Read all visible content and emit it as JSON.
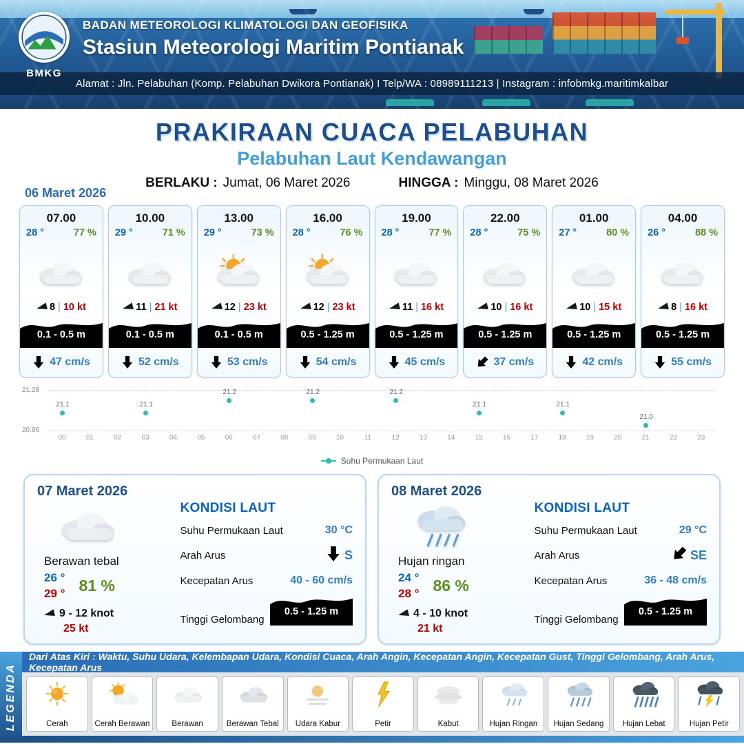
{
  "colors": {
    "header_blue": "#1d4e86",
    "title_blue": "#1b4f8f",
    "subtitle_blue": "#41a0dc",
    "temp_blue": "#0b62c4",
    "humidity_green": "#5d8f1f",
    "gust_red": "#c00000",
    "wave_band_blue": "#29abe2",
    "wave_band_green": "#00a651",
    "current_blue": "#2f7fc1",
    "sst_teal": "#2bbfae"
  },
  "header": {
    "logo": "BMKG",
    "agency": "BADAN METEOROLOGI KLIMATOLOGI DAN GEOFISIKA",
    "station": "Stasiun Meteorologi Maritim Pontianak",
    "address": "Alamat : Jln. Pelabuhan (Komp. Pelabuhan Dwikora Pontianak) I Telp/WA : 08989111213 | Instagram : infobmkg.maritimkalbar"
  },
  "title": {
    "main": "PRAKIRAAN CUACA PELABUHAN",
    "subtitle": "Pelabuhan Laut Kendawangan",
    "valid_label": "BERLAKU :",
    "valid_value": "Jumat, 06 Maret 2026",
    "until_label": "HINGGA :",
    "until_value": "Minggu, 08 Maret 2026"
  },
  "forecast_date": "06 Maret 2026",
  "forecast_cards": [
    {
      "time": "07.00",
      "temp": "28 °",
      "humidity": "77 %",
      "weather": "berawan",
      "wind": "8",
      "separator": "|",
      "gust": "10 kt",
      "wave": "0.1 - 0.5 m",
      "wave_level": "blue",
      "current": "47 cm/s"
    },
    {
      "time": "10.00",
      "temp": "29 °",
      "humidity": "71 %",
      "weather": "berawan",
      "wind": "11",
      "separator": "|",
      "gust": "21 kt",
      "wave": "0.1 - 0.5 m",
      "wave_level": "blue",
      "current": "52 cm/s"
    },
    {
      "time": "13.00",
      "temp": "29 °",
      "humidity": "73 %",
      "weather": "cerah berawan",
      "wind": "12",
      "separator": "|",
      "gust": "23 kt",
      "wave": "0.1 - 0.5 m",
      "wave_level": "blue",
      "current": "53 cm/s"
    },
    {
      "time": "16.00",
      "temp": "28 °",
      "humidity": "76 %",
      "weather": "cerah berawan",
      "wind": "12",
      "separator": "|",
      "gust": "23 kt",
      "wave": "0.5 - 1.25 m",
      "wave_level": "green",
      "current": "54 cm/s"
    },
    {
      "time": "19.00",
      "temp": "28 °",
      "humidity": "77 %",
      "weather": "berawan",
      "wind": "11",
      "separator": "|",
      "gust": "16 kt",
      "wave": "0.5 - 1.25 m",
      "wave_level": "green",
      "current": "45 cm/s"
    },
    {
      "time": "22.00",
      "temp": "28 °",
      "humidity": "75 %",
      "weather": "berawan",
      "wind": "10",
      "separator": "|",
      "gust": "16 kt",
      "wave": "0.5 - 1.25 m",
      "wave_level": "green",
      "current": "37 cm/s"
    },
    {
      "time": "01.00",
      "temp": "27 °",
      "humidity": "80 %",
      "weather": "berawan",
      "wind": "10",
      "separator": "|",
      "gust": "15 kt",
      "wave": "0.5 - 1.25 m",
      "wave_level": "green",
      "current": "42 cm/s"
    },
    {
      "time": "04.00",
      "temp": "26 °",
      "humidity": "88 %",
      "weather": "berawan",
      "wind": "8",
      "separator": "|",
      "gust": "16 kt",
      "wave": "0.5 - 1.25 m",
      "wave_level": "green",
      "current": "55 cm/s"
    }
  ],
  "chart_data": {
    "type": "scatter",
    "series_label": "Suhu Permukaan Laut",
    "x": [
      0,
      3,
      6,
      9,
      12,
      15,
      18,
      21
    ],
    "values": [
      21.1,
      21.1,
      21.2,
      21.2,
      21.2,
      21.1,
      21.1,
      21.0
    ],
    "x_ticks": [
      "00",
      "01",
      "02",
      "03",
      "04",
      "05",
      "06",
      "07",
      "08",
      "09",
      "10",
      "11",
      "12",
      "13",
      "14",
      "15",
      "16",
      "17",
      "18",
      "19",
      "20",
      "21",
      "22",
      "23"
    ],
    "ylim": [
      20.96,
      21.28
    ],
    "y_tick_labels": [
      "21.28",
      "20.96"
    ],
    "grid": "dotted horizontal lines at y limits",
    "legend_position": "bottom-center"
  },
  "daily_cards": [
    {
      "date": "07 Maret 2026",
      "condition": "Berawan tebal",
      "temp_min": "26 °",
      "temp_max": "29 °",
      "humidity": "81 %",
      "wind": "9 - 12 knot",
      "gust": "25 kt",
      "sea": {
        "title": "KONDISI LAUT",
        "sst_label": "Suhu Permukaan Laut",
        "sst_value": "30 °C",
        "current_dir_label": "Arah Arus",
        "current_dir_value": "S",
        "current_speed_label": "Kecepatan Arus",
        "current_speed_value": "40 - 60 cm/s",
        "wave_label": "Tinggi Gelombang",
        "wave_value": "0.5 - 1.25 m"
      }
    },
    {
      "date": "08 Maret 2026",
      "condition": "Hujan ringan",
      "temp_min": "24 °",
      "temp_max": "28 °",
      "humidity": "86 %",
      "wind": "4 - 10 knot",
      "gust": "21 kt",
      "sea": {
        "title": "KONDISI LAUT",
        "sst_label": "Suhu Permukaan Laut",
        "sst_value": "29 °C",
        "current_dir_label": "Arah Arus",
        "current_dir_value": "SE",
        "current_speed_label": "Kecepatan Arus",
        "current_speed_value": "36 - 48 cm/s",
        "wave_label": "Tinggi Gelombang",
        "wave_value": "0.5 - 1.25 m"
      }
    }
  ],
  "legend": {
    "title": "LEGENDA",
    "note": "Dari Atas Kiri : Waktu, Suhu Udara, Kelembapan Udara, Kondisi Cuaca, Arah Angin, Kecepatan Angin, Kecepatan Gust, Tinggi Gelombang, Arah Arus, Kecepatan Arus",
    "items": [
      {
        "label": "Cerah"
      },
      {
        "label": "Cerah Berawan"
      },
      {
        "label": "Berawan"
      },
      {
        "label": "Berawan Tebal"
      },
      {
        "label": "Udara Kabur"
      },
      {
        "label": "Petir"
      },
      {
        "label": "Kabut"
      },
      {
        "label": "Hujan Ringan"
      },
      {
        "label": "Hujan Sedang"
      },
      {
        "label": "Hujan Lebat"
      },
      {
        "label": "Hujan Petir"
      }
    ]
  }
}
